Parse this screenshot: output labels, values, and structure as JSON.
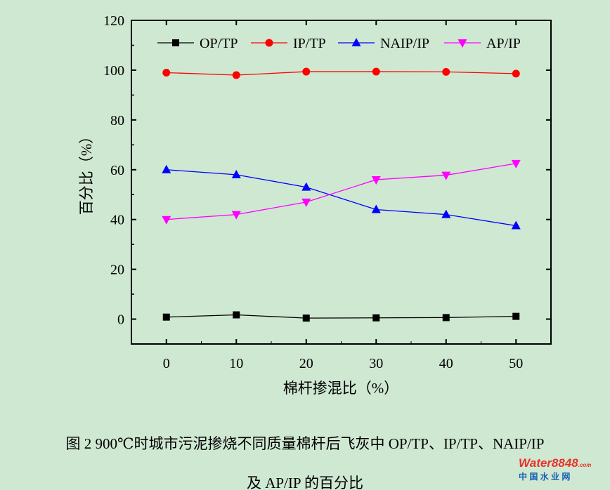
{
  "chart_data": {
    "type": "line",
    "xlabel": "棉杆掺混比（%）",
    "ylabel": "百分比（%）",
    "xlim": [
      -5,
      55
    ],
    "ylim": [
      -10,
      120
    ],
    "x": [
      0,
      10,
      20,
      30,
      40,
      50
    ],
    "xticks": [
      "0",
      "10",
      "20",
      "30",
      "40",
      "50"
    ],
    "yticks": [
      "0",
      "20",
      "40",
      "60",
      "80",
      "100",
      "120"
    ],
    "legend_position": "top",
    "series": [
      {
        "name": "OP/TP",
        "color": "#000000",
        "marker": "square",
        "values": [
          0.8,
          1.7,
          0.4,
          0.5,
          0.6,
          1.1
        ]
      },
      {
        "name": "IP/TP",
        "color": "#ff0000",
        "marker": "circle",
        "values": [
          99.0,
          98.0,
          99.4,
          99.4,
          99.3,
          98.6
        ]
      },
      {
        "name": "NAIP/IP",
        "color": "#0000ff",
        "marker": "triangle-up",
        "values": [
          60.0,
          58.0,
          53.0,
          44.0,
          42.0,
          37.5
        ]
      },
      {
        "name": "AP/IP",
        "color": "#ff00ff",
        "marker": "triangle-down",
        "values": [
          40.0,
          42.0,
          47.0,
          56.0,
          57.8,
          62.5
        ]
      }
    ]
  },
  "caption": {
    "line1": "图 2 900℃时城市污泥掺烧不同质量棉杆后飞灰中 OP/TP、IP/TP、NAIP/IP",
    "line2": "及 AP/IP 的百分比"
  },
  "watermark": {
    "brand": "Water8848",
    "domain": ".com",
    "cn": "中 国 水 业 网"
  }
}
